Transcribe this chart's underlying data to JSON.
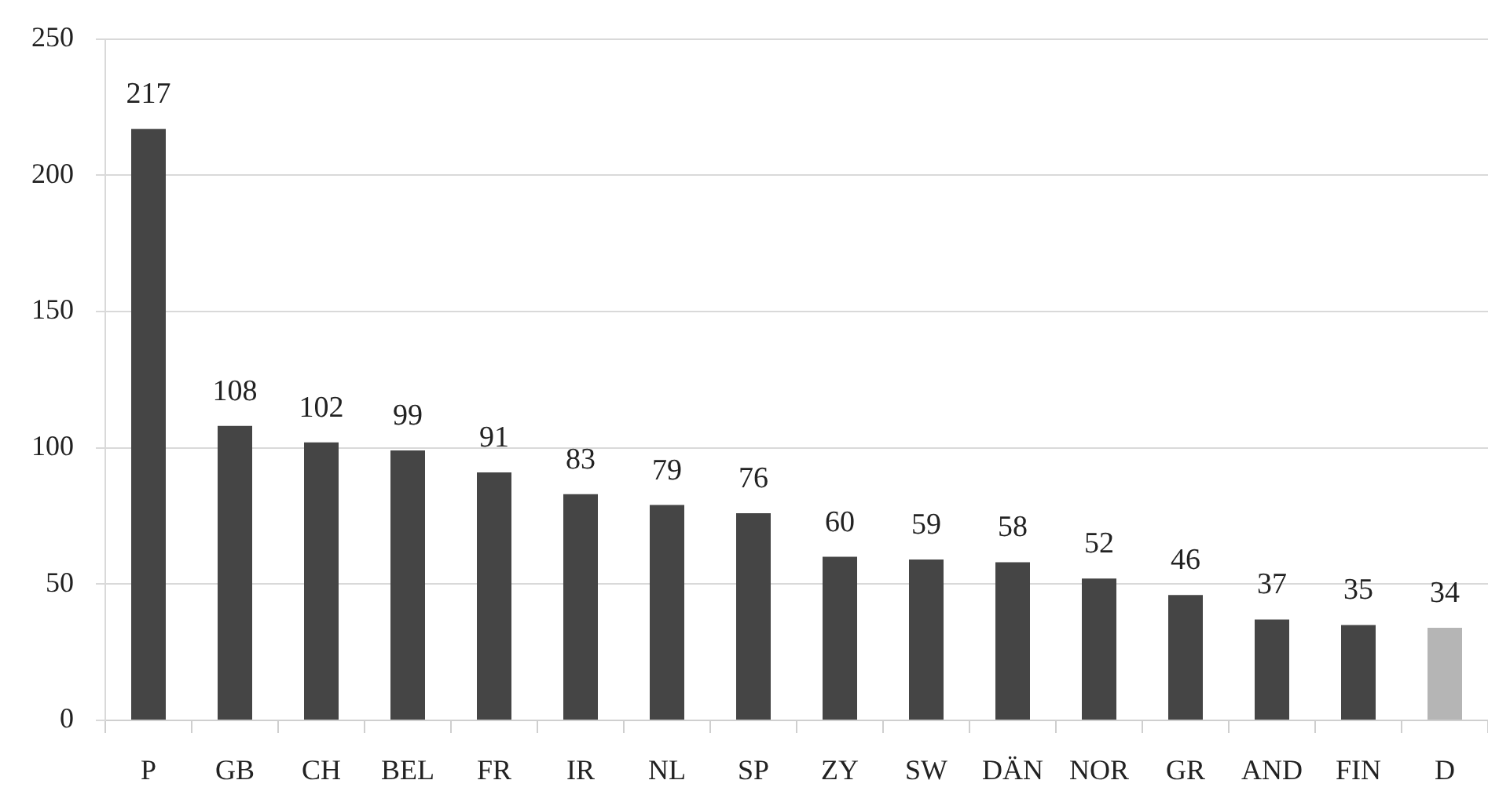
{
  "chart_data": {
    "type": "bar",
    "categories": [
      "P",
      "GB",
      "CH",
      "BEL",
      "FR",
      "IR",
      "NL",
      "SP",
      "ZY",
      "SW",
      "DÄN",
      "NOR",
      "GR",
      "AND",
      "FIN",
      "D"
    ],
    "values": [
      217,
      108,
      102,
      99,
      91,
      83,
      79,
      76,
      60,
      59,
      58,
      52,
      46,
      37,
      35,
      34
    ],
    "colors": [
      "#454545",
      "#454545",
      "#454545",
      "#454545",
      "#454545",
      "#454545",
      "#454545",
      "#454545",
      "#454545",
      "#454545",
      "#454545",
      "#454545",
      "#454545",
      "#454545",
      "#454545",
      "#b5b5b5"
    ],
    "ylim": [
      0,
      250
    ],
    "yticks": [
      0,
      50,
      100,
      150,
      200,
      250
    ],
    "grid": "y",
    "data_labels": true
  }
}
